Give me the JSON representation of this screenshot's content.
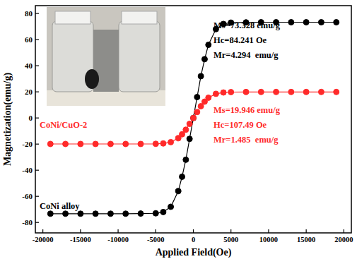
{
  "chart_data": {
    "type": "scatter",
    "x_label": "Applied Field(Oe)",
    "y_label": "Magnetization(emu/g)",
    "xlim": [
      -21000,
      21000
    ],
    "ylim": [
      -88,
      86
    ],
    "xticks": [
      -20000,
      -15000,
      -10000,
      -5000,
      0,
      5000,
      10000,
      15000,
      20000
    ],
    "yticks": [
      -80,
      -60,
      -40,
      -20,
      0,
      20,
      40,
      60,
      80
    ],
    "grid": false,
    "series": [
      {
        "name": "CoNi alloy",
        "color": "#000000",
        "marker": "circle",
        "line_style": "solid",
        "x": [
          -19000,
          -17000,
          -15000,
          -13000,
          -11000,
          -9000,
          -7000,
          -5000,
          -4000,
          -3000,
          -2000,
          -1500,
          -1000,
          -500,
          0,
          500,
          1000,
          1500,
          2000,
          3000,
          4000,
          5000,
          7000,
          9000,
          11000,
          13000,
          15000,
          17000,
          19000
        ],
        "values": [
          -73.3,
          -73.3,
          -73.3,
          -73.3,
          -73.3,
          -73.3,
          -73.2,
          -73.0,
          -72.0,
          -68.0,
          -56.0,
          -45.0,
          -32.0,
          -16.0,
          0,
          16.0,
          32.0,
          45.0,
          56.0,
          68.0,
          72.0,
          73.0,
          73.2,
          73.3,
          73.3,
          73.3,
          73.3,
          73.3,
          73.3
        ],
        "annotations": [
          "Ms=73.328 emu/g",
          "Hc=84.241 Oe",
          "Mr=4.294  emu/g"
        ]
      },
      {
        "name": "CoNi/CuO-2",
        "color": "#ff2a2a",
        "marker": "circle",
        "line_style": "solid",
        "x": [
          -19000,
          -17000,
          -15000,
          -13000,
          -11000,
          -9000,
          -7000,
          -5000,
          -4000,
          -3000,
          -2000,
          -1500,
          -1000,
          -500,
          0,
          500,
          1000,
          1500,
          2000,
          3000,
          4000,
          5000,
          7000,
          9000,
          11000,
          13000,
          15000,
          17000,
          19000
        ],
        "values": [
          -19.9,
          -19.9,
          -19.9,
          -19.9,
          -19.9,
          -19.9,
          -19.9,
          -19.8,
          -19.5,
          -18.5,
          -15.5,
          -12.5,
          -9.0,
          -4.5,
          0,
          4.5,
          9.0,
          12.5,
          15.5,
          18.5,
          19.5,
          19.8,
          19.9,
          19.9,
          19.9,
          19.9,
          19.9,
          19.9,
          19.9
        ],
        "annotations": [
          "Ms=19.946 emu/g",
          "Hc=107.49 Oe",
          "Mr=1.485  emu/g"
        ]
      }
    ]
  }
}
